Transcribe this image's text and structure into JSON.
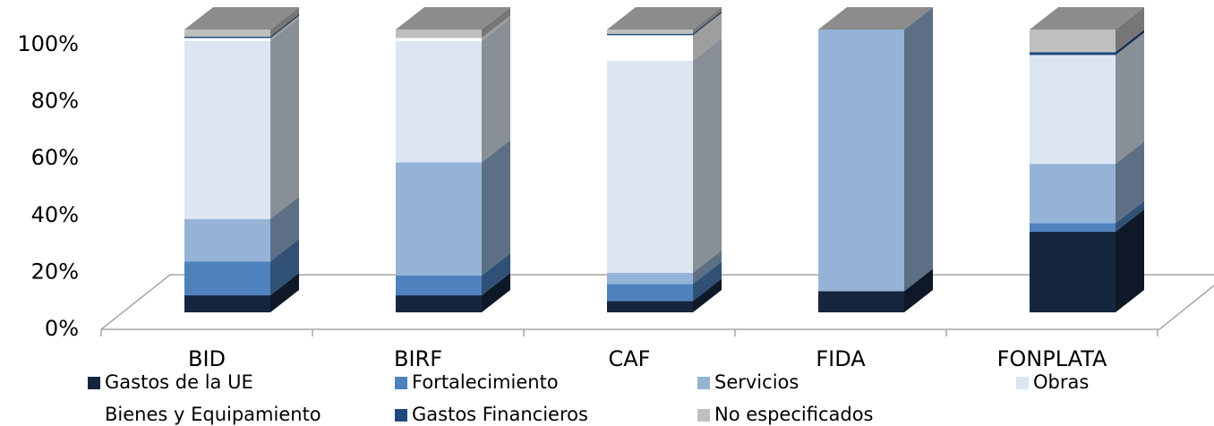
{
  "chart_data": {
    "type": "bar3d_stacked",
    "categories": [
      "BID",
      "BIRF",
      "CAF",
      "FIDA",
      "FONPLATA"
    ],
    "series": [
      {
        "name": "Gastos de la UE",
        "color": "#17263f",
        "values": [
          6,
          6,
          4,
          7.5,
          28.5
        ]
      },
      {
        "name": "Fortalecimiento",
        "color": "#4f81bd",
        "values": [
          12,
          7,
          6,
          0,
          3
        ]
      },
      {
        "name": "Servicios",
        "color": "#95b3d7",
        "values": [
          15,
          40,
          4,
          92.5,
          21
        ]
      },
      {
        "name": "Obras",
        "color": "#dce6f2",
        "values": [
          63,
          43,
          75,
          0,
          38.5
        ]
      },
      {
        "name": "Bienes y Equipamiento",
        "color": "#ffffff",
        "values": [
          1,
          1,
          9,
          0,
          0
        ]
      },
      {
        "name": "Gastos Financieros",
        "color": "#1f497d",
        "values": [
          0.5,
          0,
          0.5,
          0,
          1
        ]
      },
      {
        "name": "No especificados",
        "color": "#bfbfbf",
        "values": [
          2.5,
          3,
          1.5,
          0,
          8
        ]
      }
    ],
    "ylim": [
      0,
      100
    ],
    "yticks": [
      {
        "value": 0,
        "label": "0%"
      },
      {
        "value": 20,
        "label": "20%"
      },
      {
        "value": 40,
        "label": "40%"
      },
      {
        "value": 60,
        "label": "60%"
      },
      {
        "value": 80,
        "label": "80%"
      },
      {
        "value": 100,
        "label": "100%"
      }
    ]
  }
}
